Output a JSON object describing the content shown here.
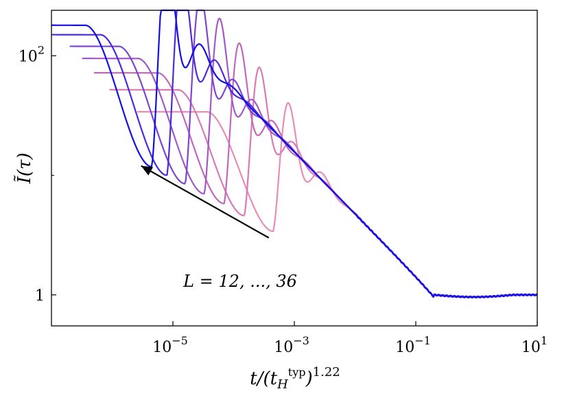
{
  "chart_data": {
    "type": "line",
    "xlabel": "t/(t_H^typ)^1.22",
    "ylabel": "Ĩ(τ)",
    "xscale": "log",
    "yscale": "log",
    "xlim": [
      1e-07,
      10
    ],
    "ylim": [
      0.55,
      240
    ],
    "x_ticks": [
      {
        "value": 1e-05,
        "base": "10",
        "exp": "−5"
      },
      {
        "value": 0.001,
        "base": "10",
        "exp": "−3"
      },
      {
        "value": 0.1,
        "base": "10",
        "exp": "−1"
      },
      {
        "value": 10,
        "base": "10",
        "exp": "1"
      }
    ],
    "y_ticks": [
      {
        "value": 1,
        "label": "1"
      },
      {
        "value": 100,
        "base": "10",
        "exp": "2"
      }
    ],
    "y_minor_ticks": [
      10
    ],
    "annotation": {
      "text": "L = 12, ..., 36",
      "arrow_from": [
        0.00038,
        3.0
      ],
      "arrow_to": [
        3e-06,
        12.0
      ]
    },
    "color_low_L": "#e98bb8",
    "color_high_L": "#1010e6",
    "series": [
      {
        "L": 12,
        "plateau": 34,
        "x_start": 2.6e-06,
        "dip_x": 0.00045,
        "dip_y": 3.4,
        "color": "#e98bb8"
      },
      {
        "L": 16,
        "plateau": 52,
        "x_start": 9e-07,
        "dip_x": 0.00015,
        "dip_y": 4.6,
        "color": "#d879b8"
      },
      {
        "L": 20,
        "plateau": 72,
        "x_start": 5e-07,
        "dip_x": 7e-05,
        "dip_y": 5.8,
        "color": "#c168bd"
      },
      {
        "L": 24,
        "plateau": 95,
        "x_start": 3.2e-07,
        "dip_x": 3.3e-05,
        "dip_y": 7.0,
        "color": "#a258c5"
      },
      {
        "L": 28,
        "plateau": 120,
        "x_start": 2e-07,
        "dip_x": 1.6e-05,
        "dip_y": 8.5,
        "color": "#7e44cf"
      },
      {
        "L": 32,
        "plateau": 150,
        "x_start": 1e-07,
        "dip_x": 8e-06,
        "dip_y": 10.0,
        "color": "#4b2ad9"
      },
      {
        "L": 36,
        "plateau": 180,
        "x_start": 1e-07,
        "dip_x": 4.5e-06,
        "dip_y": 11.8,
        "color": "#1010e6"
      }
    ]
  }
}
